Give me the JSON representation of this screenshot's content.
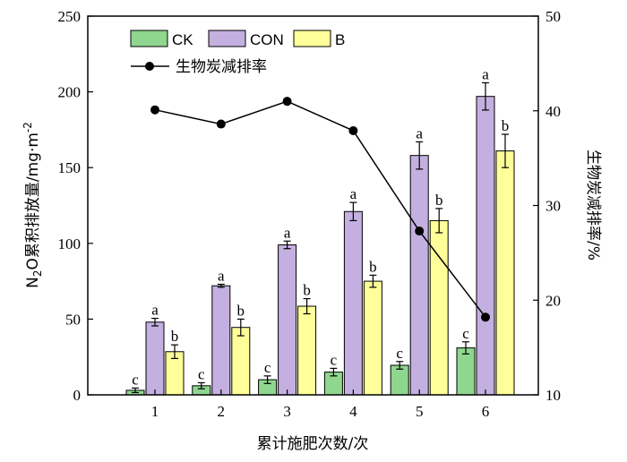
{
  "chart_data": {
    "type": "bar",
    "categories": [
      "1",
      "2",
      "3",
      "4",
      "5",
      "6"
    ],
    "xlabel": "累计施肥次数/次",
    "ylabel_left": {
      "prefix": "N",
      "sub": "2",
      "main": "O累积排放量/mg·m",
      "sup": "-2"
    },
    "ylabel_right": "生物炭减排率/%",
    "ylim_left": [
      0,
      250
    ],
    "yticks_left": [
      0,
      50,
      100,
      150,
      200,
      250
    ],
    "ylim_right": [
      10,
      50
    ],
    "yticks_right": [
      10,
      20,
      30,
      40,
      50
    ],
    "legend_placement": "top-left",
    "colors": {
      "CK": "#8fd68f",
      "CON": "#c3b0e0",
      "B": "#ffff99",
      "line": "#000000"
    },
    "series": [
      {
        "name": "CK",
        "values": [
          3,
          6,
          10,
          15,
          19.5,
          31
        ],
        "errors": [
          1.5,
          2,
          2.5,
          2.5,
          2.5,
          4
        ],
        "labels": [
          "c",
          "c",
          "c",
          "c",
          "c",
          "c"
        ]
      },
      {
        "name": "CON",
        "values": [
          48,
          72,
          99,
          121,
          158,
          197
        ],
        "errors": [
          2.5,
          1,
          2.5,
          6,
          9,
          9
        ],
        "labels": [
          "a",
          "a",
          "a",
          "a",
          "a",
          "a"
        ]
      },
      {
        "name": "B",
        "values": [
          28.5,
          44.5,
          58.5,
          75,
          115,
          161
        ],
        "errors": [
          4.5,
          5.5,
          5,
          4,
          8,
          11
        ],
        "labels": [
          "b",
          "b",
          "b",
          "b",
          "b",
          "b"
        ]
      }
    ],
    "line_series": {
      "name": "生物炭减排率",
      "axis": "right",
      "values": [
        40.1,
        38.6,
        41.0,
        37.9,
        27.3,
        18.2
      ]
    }
  }
}
